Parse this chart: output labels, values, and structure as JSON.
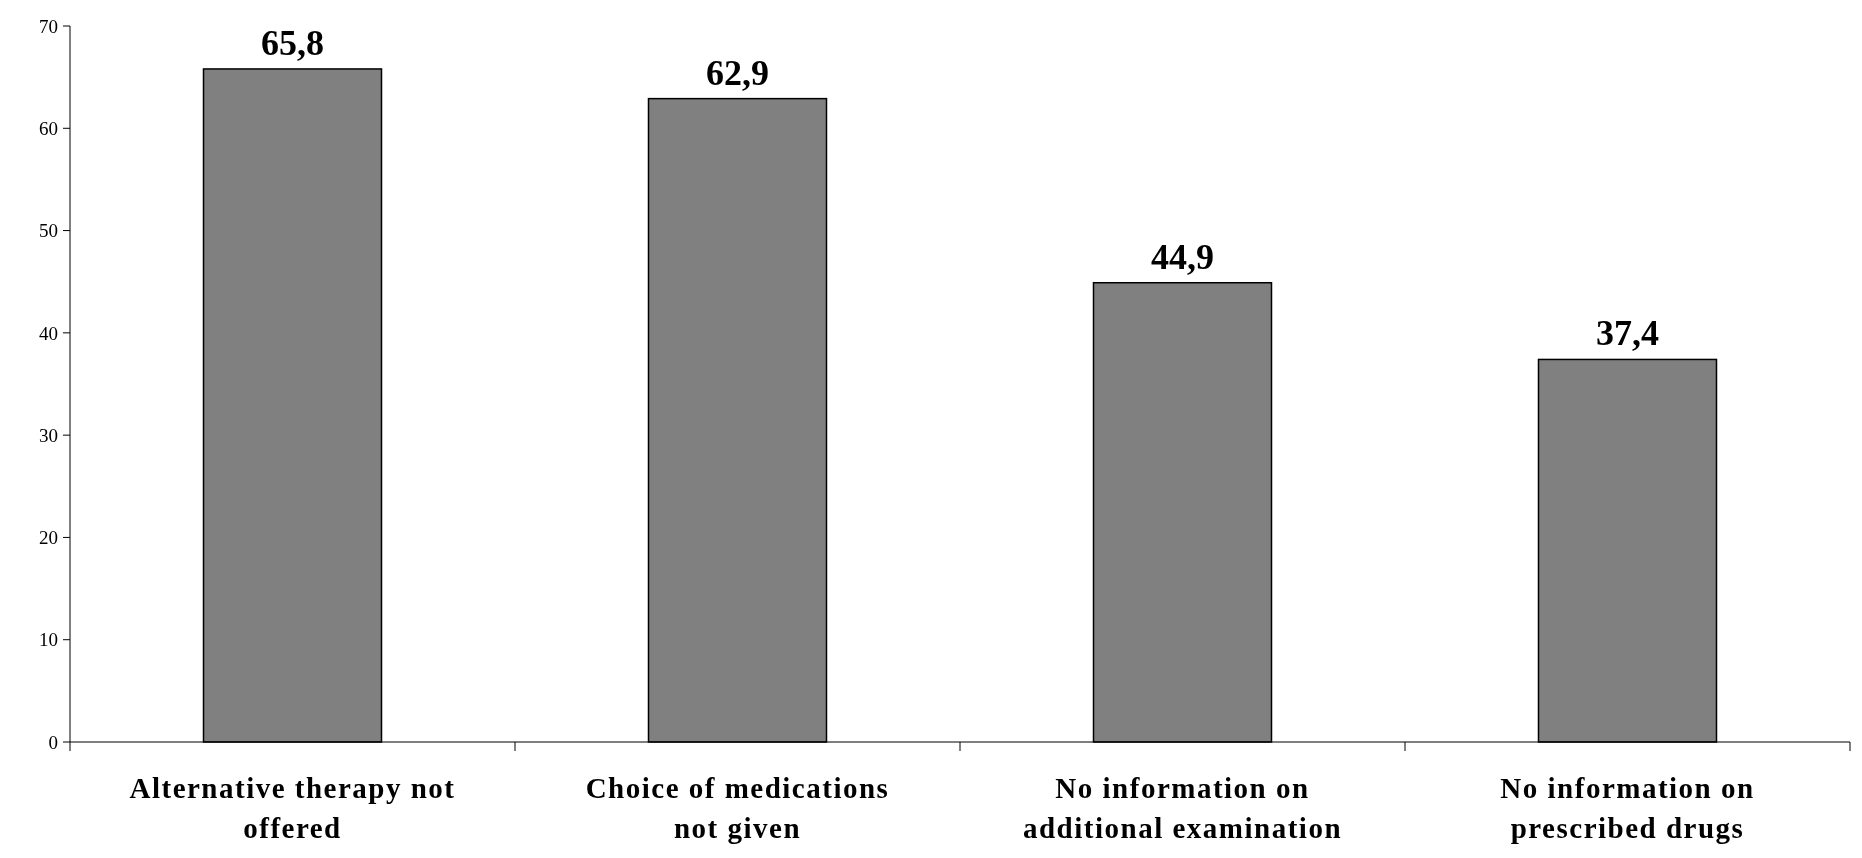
{
  "chart_data": {
    "type": "bar",
    "categories": [
      "Alternative therapy not offered",
      "Choice of medications not given",
      "No information on additional examination",
      "No information on prescribed drugs"
    ],
    "values": [
      65.8,
      62.9,
      44.9,
      37.4
    ],
    "value_labels": [
      "65,8",
      "62,9",
      "44,9",
      "37,4"
    ],
    "color": "#808080",
    "ylim": [
      0,
      70
    ],
    "yticks": [
      0,
      10,
      20,
      30,
      40,
      50,
      60,
      70
    ],
    "grid": false
  }
}
